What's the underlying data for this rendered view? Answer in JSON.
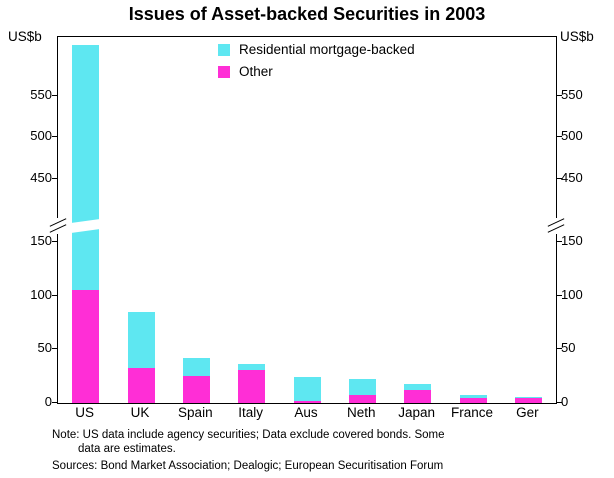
{
  "title": "Issues of Asset-backed Securities in 2003",
  "y_unit_left": "US$b",
  "y_unit_right": "US$b",
  "chart_data": {
    "type": "bar",
    "stacked": true,
    "title": "Issues of Asset-backed Securities in 2003",
    "ylabel": "US$b",
    "xlabel": "",
    "grid": false,
    "legend_position": "top-center-inside",
    "categories": [
      "US",
      "UK",
      "Spain",
      "Italy",
      "Aus",
      "Neth",
      "Japan",
      "France",
      "Ger"
    ],
    "series": [
      {
        "name": "Residential mortgage-backed",
        "color": "#5ee7f1",
        "values": [
          505,
          52,
          17,
          5,
          22,
          15,
          6,
          2,
          1
        ]
      },
      {
        "name": "Other",
        "color": "#ff2ed6",
        "values": [
          105,
          33,
          25,
          31,
          2,
          7,
          12,
          5,
          5
        ]
      }
    ],
    "totals": [
      610,
      85,
      42,
      36,
      24,
      22,
      18,
      7,
      6
    ],
    "axis": {
      "broken_axis": true,
      "lower_ticks": [
        0,
        50,
        100,
        150
      ],
      "upper_ticks": [
        450,
        500,
        550
      ],
      "break_between": [
        160,
        400
      ],
      "ylim": [
        0,
        620
      ]
    }
  },
  "notes": {
    "line1": "Note:  US data include agency securities; Data exclude covered bonds. Some",
    "line2": "data are estimates.",
    "sources": "Sources: Bond Market Association; Dealogic; European Securitisation Forum"
  }
}
